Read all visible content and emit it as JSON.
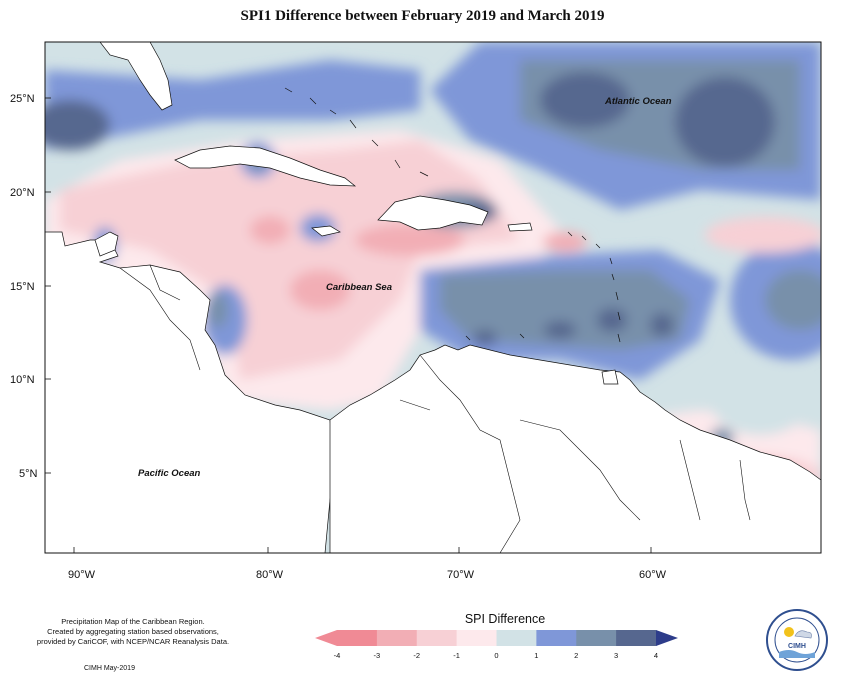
{
  "title": "SPI1 Difference between February 2019 and March 2019",
  "map": {
    "lon_ticks": [
      "90°W",
      "80°W",
      "70°W",
      "60°W"
    ],
    "lat_ticks": [
      "25°N",
      "20°N",
      "15°N",
      "10°N",
      "5°N"
    ],
    "labels": {
      "atlantic": "Atlantic Ocean",
      "caribbean": "Caribbean Sea",
      "pacific": "Pacific Ocean"
    }
  },
  "caption": {
    "line1": "Precipitation Map of the Caribbean Region.",
    "line2": "Created by aggregating station based observations,",
    "line3": "provided by CariCOF, with NCEP/NCAR Reanalysis Data.",
    "credit": "CIMH May-2019"
  },
  "legend": {
    "title": "SPI Difference",
    "ticks": [
      "-4",
      "-3",
      "-2",
      "-1",
      "0",
      "1",
      "2",
      "3",
      "4"
    ],
    "colors": [
      "#f08a95",
      "#f2aeb5",
      "#f7d0d5",
      "#fde9ec",
      "#d2e2e6",
      "#7f97d8",
      "#7890aa",
      "#56678f",
      "#2d3c8a"
    ]
  },
  "logo_text": "CIMH"
}
